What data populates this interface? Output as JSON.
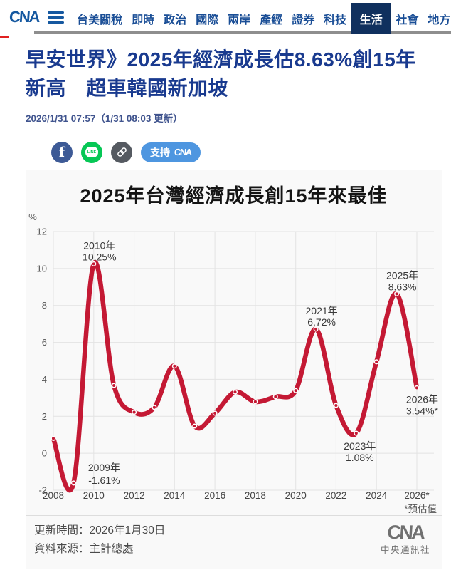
{
  "nav": {
    "logo": "CNA",
    "items": [
      {
        "label": "台美關稅",
        "active": false
      },
      {
        "label": "即時",
        "active": false
      },
      {
        "label": "政治",
        "active": false
      },
      {
        "label": "國際",
        "active": false
      },
      {
        "label": "兩岸",
        "active": false
      },
      {
        "label": "產經",
        "active": false
      },
      {
        "label": "證券",
        "active": false
      },
      {
        "label": "科技",
        "active": false
      },
      {
        "label": "生活",
        "active": true
      },
      {
        "label": "社會",
        "active": false
      },
      {
        "label": "地方",
        "active": false
      }
    ],
    "colors": {
      "link": "#1a4e96",
      "active_bg": "#10305e"
    }
  },
  "article": {
    "title": "早安世界》2025年經濟成長估8.63%創15年新高　超車韓國新加坡",
    "published": "2026/1/31 07:57（1/31 08:03 更新）",
    "share": {
      "facebook_glyph": "f",
      "line_glyph": "LINE",
      "support_label": "支持",
      "support_logo": "CNA"
    }
  },
  "infographic": {
    "title": "2025年台灣經濟成長創15年來最佳",
    "updated": "更新時間：2026年1月30日",
    "source": "資料來源：主計總處",
    "brand_logo": "CNA",
    "brand_name": "中央通訊社",
    "background": "#f9f9f9"
  },
  "chart_data": {
    "type": "line",
    "title": "2025年台灣經濟成長創15年來最佳",
    "ylabel": "%",
    "x": [
      2008,
      2009,
      2010,
      2011,
      2012,
      2013,
      2014,
      2015,
      2016,
      2017,
      2018,
      2019,
      2020,
      2021,
      2022,
      2023,
      2024,
      2025,
      2026
    ],
    "values": [
      0.8,
      -1.61,
      10.25,
      3.67,
      2.22,
      2.48,
      4.72,
      1.47,
      2.17,
      3.31,
      2.79,
      3.06,
      3.39,
      6.72,
      2.59,
      1.08,
      4.95,
      8.63,
      3.54
    ],
    "ylim": [
      -2,
      12
    ],
    "yticks": [
      -2,
      0,
      2,
      4,
      6,
      8,
      10,
      12
    ],
    "xticks": [
      2008,
      2010,
      2012,
      2014,
      2016,
      2018,
      2020,
      2022,
      2024,
      2026
    ],
    "xtick_labels": [
      "2008",
      "2010",
      "2012",
      "2014",
      "2016",
      "2018",
      "2020",
      "2022",
      "2024",
      "2026*"
    ],
    "grid": true,
    "legend": "none",
    "line_color": "#c41934",
    "marker": "open-circle-white",
    "annotations": [
      {
        "year": 2009,
        "label": "2009年",
        "value": "-1.61%",
        "position": "right"
      },
      {
        "year": 2010,
        "label": "2010年",
        "value": "10.25%",
        "position": "above"
      },
      {
        "year": 2021,
        "label": "2021年",
        "value": "6.72%",
        "position": "above"
      },
      {
        "year": 2023,
        "label": "2023年",
        "value": "1.08%",
        "position": "below"
      },
      {
        "year": 2025,
        "label": "2025年",
        "value": "8.63%",
        "position": "above"
      },
      {
        "year": 2026,
        "label": "2026年",
        "value": "3.54%*",
        "position": "right-below"
      }
    ],
    "footnote": "*預估值"
  }
}
